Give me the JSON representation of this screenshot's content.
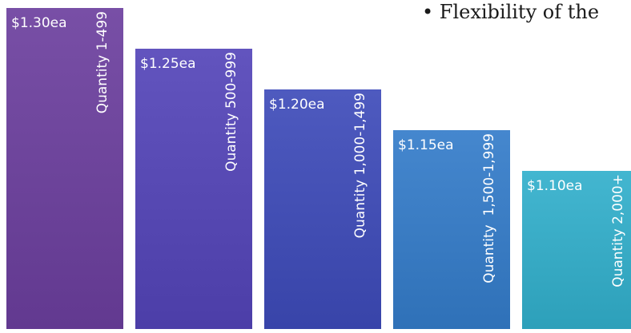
{
  "bullet": {
    "text": "• Flexibility of the"
  },
  "chart_data": {
    "type": "bar",
    "categories": [
      "Quantity 1-499",
      "Quantity 500-999",
      "Quantity 1,000-1,499",
      "Quantity  1,500-1,999",
      "Quantity 2,000+"
    ],
    "values": [
      1.3,
      1.25,
      1.2,
      1.15,
      1.1
    ],
    "data_labels": [
      "$1.30ea",
      "$1.25ea",
      "$1.20ea",
      "$1.15ea",
      "$1.10ea"
    ],
    "colors": [
      "#70479e",
      "#5a4cb6",
      "#4652b7",
      "#3d7fc6",
      "#3baec8"
    ],
    "title": "",
    "xlabel": "",
    "ylabel": "",
    "grid": false
  }
}
